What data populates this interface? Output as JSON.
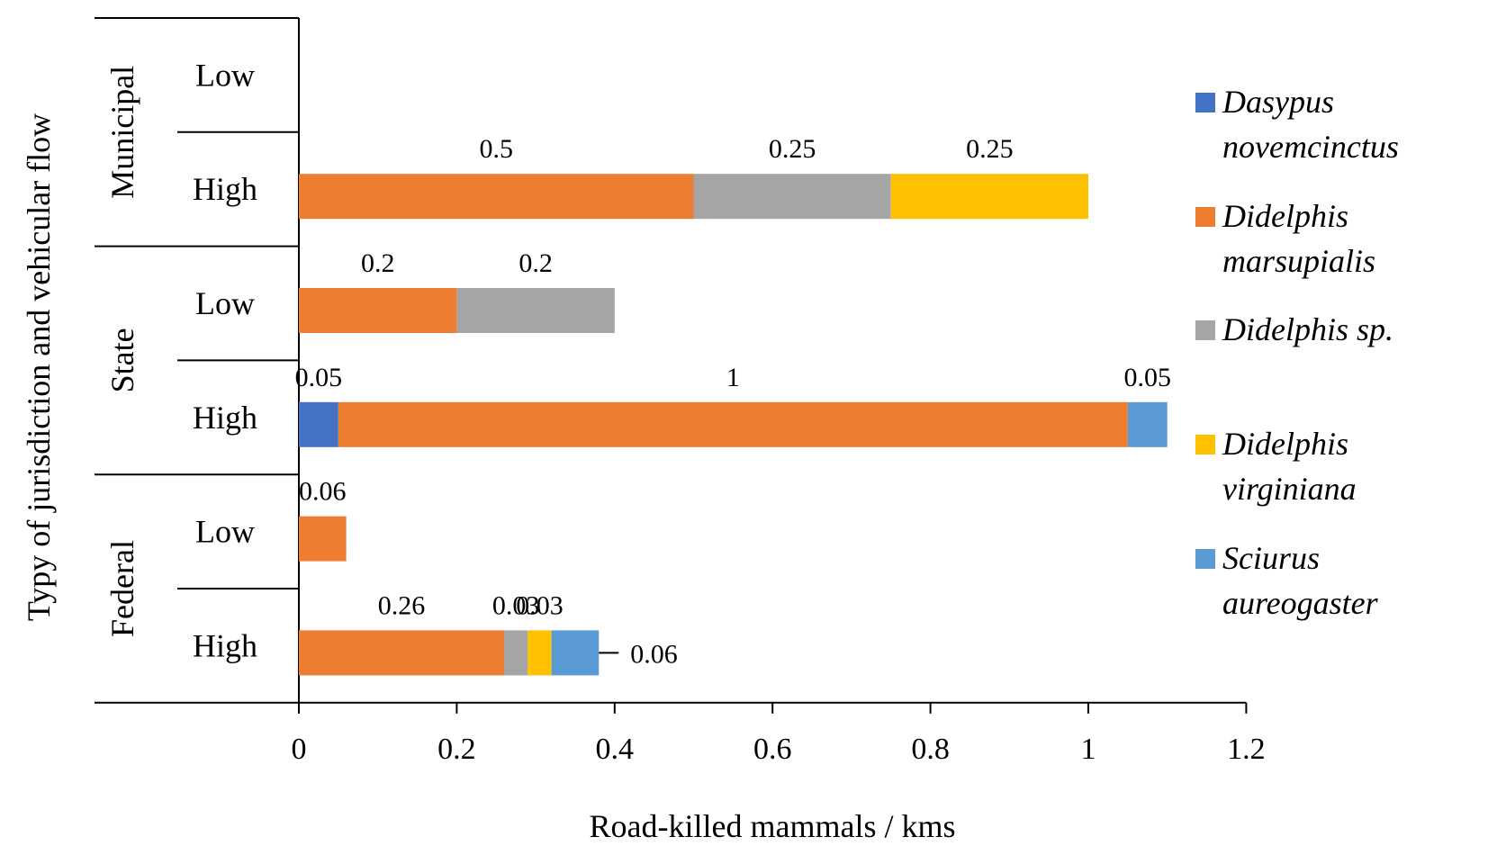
{
  "chart_data": {
    "type": "bar",
    "orientation": "horizontal",
    "stacked": true,
    "title": "",
    "xlabel": "Road-killed mammals / kms",
    "ylabel": "Typy of jurisdiction and vehicular flow",
    "xlim": [
      0,
      1.2
    ],
    "xticks": [
      "0",
      "0.2",
      "0.4",
      "0.6",
      "0.8",
      "1",
      "1.2"
    ],
    "xtick_values": [
      0,
      0.2,
      0.4,
      0.6,
      0.8,
      1,
      1.2
    ],
    "groups": [
      "Municipal",
      "State",
      "Federal"
    ],
    "categories": [
      "Low",
      "High",
      "Low",
      "High",
      "Low",
      "High"
    ],
    "category_groups": [
      "Municipal",
      "Municipal",
      "State",
      "State",
      "Federal",
      "Federal"
    ],
    "series": [
      {
        "name": "Dasypus novemcinctus",
        "legend_lines": [
          "Dasypus",
          "novemcinctus"
        ],
        "color": "#4472C4",
        "values": [
          0,
          0,
          0,
          0.05,
          0,
          0
        ]
      },
      {
        "name": "Didelphis marsupialis",
        "legend_lines": [
          "Didelphis",
          "marsupialis"
        ],
        "color": "#ED7D31",
        "values": [
          0,
          0.5,
          0.2,
          1,
          0.06,
          0.26
        ]
      },
      {
        "name": "Didelphis sp.",
        "legend_lines": [
          "Didelphis sp."
        ],
        "color": "#A5A5A5",
        "values": [
          0,
          0.25,
          0.2,
          0,
          0,
          0.03
        ]
      },
      {
        "name": "Didelphis virginiana",
        "legend_lines": [
          "Didelphis",
          "virginiana"
        ],
        "color": "#FFC000",
        "values": [
          0,
          0.25,
          0,
          0,
          0,
          0.03
        ]
      },
      {
        "name": "Sciurus aureogaster",
        "legend_lines": [
          "Sciurus",
          "aureogaster"
        ],
        "color": "#5B9BD5",
        "values": [
          0,
          0,
          0,
          0.05,
          0,
          0.06
        ]
      }
    ],
    "data_labels": [
      [],
      [
        {
          "series": 1,
          "text": "0.5"
        },
        {
          "series": 2,
          "text": "0.25"
        },
        {
          "series": 3,
          "text": "0.25"
        }
      ],
      [
        {
          "series": 1,
          "text": "0.2"
        },
        {
          "series": 2,
          "text": "0.2"
        }
      ],
      [
        {
          "series": 0,
          "text": "0.05"
        },
        {
          "series": 1,
          "text": "1"
        },
        {
          "series": 4,
          "text": "0.05"
        }
      ],
      [
        {
          "series": 1,
          "text": "0.06"
        }
      ],
      [
        {
          "series": 1,
          "text": "0.26"
        },
        {
          "series": 2,
          "text": "0.03"
        },
        {
          "series": 3,
          "text": "0.03"
        },
        {
          "series": 4,
          "text": "0.06",
          "callout": true
        }
      ]
    ],
    "grid": false,
    "legend_position": "right"
  }
}
